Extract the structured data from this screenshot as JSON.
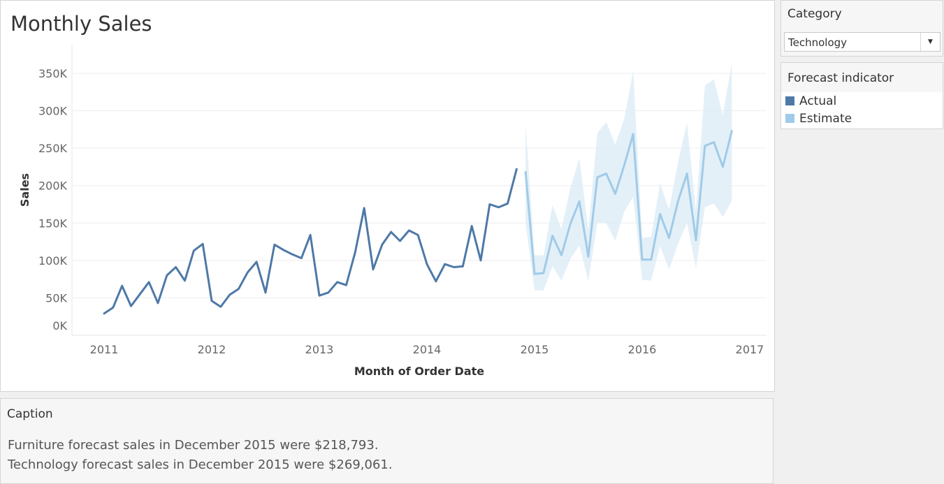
{
  "chart": {
    "title": "Monthly Sales",
    "ylabel": "Sales",
    "xlabel": "Month of Order Date"
  },
  "category_filter": {
    "title": "Category",
    "selected": "Technology"
  },
  "legend": {
    "title": "Forecast indicator",
    "items": [
      {
        "label": "Actual",
        "color": "#4e79a7"
      },
      {
        "label": "Estimate",
        "color": "#a0cbe8"
      }
    ]
  },
  "caption": {
    "title": "Caption",
    "lines": [
      "Furniture forecast sales in December 2015 were $218,793.",
      "Technology forecast sales in December 2015 were $269,061."
    ]
  },
  "chart_data": {
    "type": "line",
    "title": "Monthly Sales",
    "xlabel": "Month of Order Date",
    "ylabel": "Sales",
    "x_ticks": [
      "2011",
      "2012",
      "2013",
      "2014",
      "2015",
      "2016",
      "2017"
    ],
    "y_ticks": [
      "0K",
      "50K",
      "100K",
      "150K",
      "200K",
      "250K",
      "300K",
      "350K"
    ],
    "ylim": [
      0,
      360000
    ],
    "grid": true,
    "legend_position": "right",
    "series": [
      {
        "name": "Actual",
        "color": "#4e79a7",
        "start": "2011-01",
        "values": [
          29000,
          37000,
          66000,
          39000,
          55000,
          71000,
          43000,
          80000,
          91000,
          73000,
          113000,
          122000,
          46000,
          38000,
          54000,
          62000,
          84000,
          98000,
          57000,
          121000,
          114000,
          108000,
          103000,
          134000,
          53000,
          57000,
          71000,
          67000,
          111000,
          170000,
          88000,
          121000,
          138000,
          126000,
          140000,
          134000,
          95000,
          72000,
          95000,
          91000,
          92000,
          146000,
          100000,
          175000,
          171000,
          176000,
          222000
        ]
      },
      {
        "name": "Estimate",
        "color": "#a0cbe8",
        "start": "2014-12",
        "values": [
          218000,
          82000,
          83000,
          133000,
          107000,
          149000,
          179000,
          105000,
          211000,
          216000,
          189000,
          227000,
          269000,
          101000,
          101000,
          162000,
          130000,
          179000,
          216000,
          127000,
          253000,
          258000,
          225000,
          273000
        ],
        "upper": [
          283000,
          107000,
          107000,
          174000,
          142000,
          197000,
          237000,
          140000,
          270000,
          285000,
          255000,
          289000,
          354000,
          130000,
          132000,
          203000,
          168000,
          231000,
          284000,
          166000,
          334000,
          342000,
          294000,
          364000
        ],
        "lower": [
          150000,
          60000,
          60000,
          92000,
          73000,
          102000,
          120000,
          72000,
          150000,
          150000,
          126000,
          165000,
          185000,
          74000,
          73000,
          119000,
          88000,
          122000,
          150000,
          89000,
          171000,
          176000,
          158000,
          180000
        ]
      }
    ]
  }
}
